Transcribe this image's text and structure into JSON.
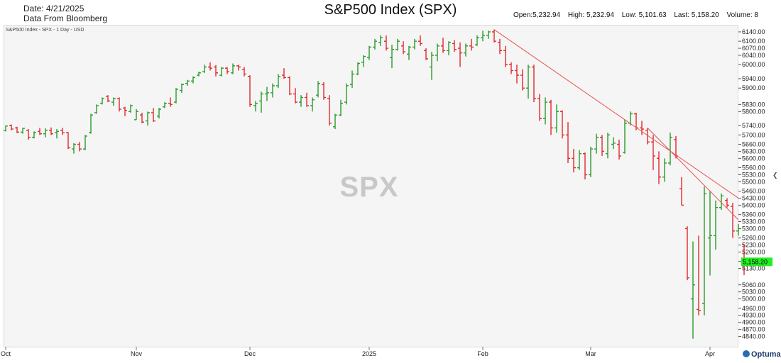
{
  "header": {
    "date": "Date: 4/21/2025",
    "source": "Data From Bloomberg",
    "title": "S&P500 Index (SPX)",
    "open": "Open:5,232.94",
    "high": "High: 5,232.94",
    "low": "Low: 5,101.63",
    "last": "Last: 5,158.20",
    "volume": "Volume: 8"
  },
  "legend": "S&P500 Index - SPX - 1 Day - USD",
  "watermark": "SPX",
  "logo": "Optuma",
  "colors": {
    "up": "#2a9b2a",
    "down": "#e0292b",
    "trend": "#e8524f",
    "last_badge": "#22ee22"
  },
  "chart_data": {
    "type": "bar",
    "ylim": [
      4805,
      6155
    ],
    "y_ticks": [
      6140,
      6100,
      6070,
      6040,
      6000,
      5940,
      5900,
      5830,
      5800,
      5740,
      5700,
      5660,
      5630,
      5600,
      5560,
      5530,
      5500,
      5460,
      5430,
      5400,
      5360,
      5330,
      5300,
      5260,
      5230,
      5200,
      5160,
      5130,
      5060,
      5030,
      5000,
      4960,
      4930,
      4900,
      4870,
      4840
    ],
    "y_tick_labels": [
      "6140.00",
      "6100.00",
      "6070.00",
      "6040.00",
      "6000.00",
      "5940.00",
      "5900.00",
      "5830.00",
      "5800.00",
      "5740.00",
      "5700.00",
      "5660.00",
      "5630.00",
      "5600.00",
      "5560.00",
      "5530.00",
      "5500.00",
      "5460.00",
      "5430.00",
      "5400.00",
      "5360.00",
      "5330.00",
      "5300.00",
      "5260.00",
      "5230.00",
      "5200.00",
      "5160.00",
      "5130.00",
      "5060.00",
      "5030.00",
      "5000.00",
      "4960.00",
      "4930.00",
      "4900.00",
      "4870.00",
      "4840.00"
    ],
    "x_labels": [
      {
        "label": "Oct",
        "bar": 0
      },
      {
        "label": "Nov",
        "bar": 23
      },
      {
        "label": "Dec",
        "bar": 43
      },
      {
        "label": "2025",
        "bar": 64
      },
      {
        "label": "Feb",
        "bar": 84
      },
      {
        "label": "Mar",
        "bar": 103
      },
      {
        "label": "Apr",
        "bar": 124
      }
    ],
    "last_value": "5,158.20",
    "ohlc": [
      [
        5718,
        5740,
        5715,
        5738
      ],
      [
        5740,
        5745,
        5720,
        5725
      ],
      [
        5730,
        5735,
        5708,
        5712
      ],
      [
        5712,
        5730,
        5705,
        5728
      ],
      [
        5720,
        5725,
        5680,
        5690
      ],
      [
        5690,
        5715,
        5685,
        5710
      ],
      [
        5715,
        5730,
        5700,
        5705
      ],
      [
        5705,
        5728,
        5690,
        5720
      ],
      [
        5720,
        5732,
        5700,
        5705
      ],
      [
        5710,
        5725,
        5685,
        5715
      ],
      [
        5720,
        5730,
        5700,
        5710
      ],
      [
        5710,
        5712,
        5640,
        5645
      ],
      [
        5640,
        5665,
        5620,
        5660
      ],
      [
        5660,
        5670,
        5630,
        5640
      ],
      [
        5640,
        5700,
        5635,
        5695
      ],
      [
        5710,
        5790,
        5705,
        5785
      ],
      [
        5795,
        5830,
        5790,
        5825
      ],
      [
        5835,
        5860,
        5830,
        5855
      ],
      [
        5865,
        5870,
        5840,
        5845
      ],
      [
        5840,
        5860,
        5825,
        5855
      ],
      [
        5855,
        5860,
        5800,
        5810
      ],
      [
        5815,
        5820,
        5780,
        5805
      ],
      [
        5800,
        5830,
        5795,
        5825
      ],
      [
        5765,
        5810,
        5765,
        5800
      ],
      [
        5785,
        5795,
        5750,
        5755
      ],
      [
        5760,
        5800,
        5740,
        5795
      ],
      [
        5795,
        5815,
        5755,
        5760
      ],
      [
        5780,
        5815,
        5770,
        5810
      ],
      [
        5820,
        5840,
        5815,
        5835
      ],
      [
        5835,
        5860,
        5820,
        5830
      ],
      [
        5840,
        5900,
        5835,
        5895
      ],
      [
        5890,
        5920,
        5880,
        5915
      ],
      [
        5920,
        5935,
        5910,
        5930
      ],
      [
        5930,
        5950,
        5920,
        5945
      ],
      [
        5955,
        5970,
        5950,
        5965
      ],
      [
        5970,
        6000,
        5965,
        5990
      ],
      [
        5990,
        6010,
        5975,
        5985
      ],
      [
        5990,
        5998,
        5950,
        5965
      ],
      [
        5955,
        5990,
        5950,
        5985
      ],
      [
        5985,
        5990,
        5960,
        5970
      ],
      [
        5965,
        6005,
        5960,
        5995
      ],
      [
        5995,
        6000,
        5975,
        5990
      ],
      [
        5980,
        5990,
        5950,
        5960
      ],
      [
        5950,
        5955,
        5820,
        5830
      ],
      [
        5825,
        5845,
        5800,
        5835
      ],
      [
        5845,
        5885,
        5795,
        5875
      ],
      [
        5875,
        5905,
        5845,
        5880
      ],
      [
        5880,
        5920,
        5860,
        5910
      ],
      [
        5910,
        5960,
        5900,
        5950
      ],
      [
        5955,
        5985,
        5940,
        5945
      ],
      [
        5945,
        5950,
        5870,
        5875
      ],
      [
        5875,
        5900,
        5835,
        5840
      ],
      [
        5840,
        5870,
        5820,
        5860
      ],
      [
        5860,
        5880,
        5820,
        5825
      ],
      [
        5825,
        5860,
        5800,
        5850
      ],
      [
        5870,
        5930,
        5860,
        5920
      ],
      [
        5915,
        5925,
        5850,
        5860
      ],
      [
        5855,
        5870,
        5740,
        5750
      ],
      [
        5735,
        5790,
        5725,
        5785
      ],
      [
        5785,
        5850,
        5780,
        5835
      ],
      [
        5840,
        5920,
        5830,
        5910
      ],
      [
        5915,
        5975,
        5900,
        5960
      ],
      [
        5960,
        6010,
        5955,
        6005
      ],
      [
        6010,
        6040,
        5990,
        6035
      ],
      [
        6030,
        6080,
        6020,
        6075
      ],
      [
        6075,
        6110,
        6065,
        6100
      ],
      [
        6095,
        6125,
        6080,
        6115
      ],
      [
        6100,
        6125,
        6060,
        6070
      ],
      [
        6030,
        6085,
        5985,
        6065
      ],
      [
        6065,
        6110,
        6060,
        6100
      ],
      [
        6080,
        6100,
        6045,
        6055
      ],
      [
        6045,
        6080,
        6020,
        6075
      ],
      [
        6075,
        6110,
        6065,
        6100
      ],
      [
        6100,
        6125,
        6080,
        6090
      ],
      [
        6060,
        6070,
        6020,
        6025
      ],
      [
        5990,
        6055,
        5935,
        6040
      ],
      [
        6040,
        6090,
        6015,
        6080
      ],
      [
        6080,
        6115,
        6050,
        6060
      ],
      [
        6060,
        6100,
        6040,
        6095
      ],
      [
        6090,
        6105,
        6055,
        6065
      ],
      [
        6070,
        6095,
        5990,
        6050
      ],
      [
        6050,
        6090,
        6035,
        6080
      ],
      [
        6080,
        6110,
        6060,
        6075
      ],
      [
        6085,
        6125,
        6080,
        6115
      ],
      [
        6115,
        6145,
        6100,
        6125
      ],
      [
        6125,
        6145,
        6110,
        6140
      ],
      [
        6140,
        6150,
        6095,
        6100
      ],
      [
        6095,
        6110,
        6045,
        6060
      ],
      [
        6060,
        6080,
        5990,
        6000
      ],
      [
        6000,
        6010,
        5960,
        5975
      ],
      [
        5975,
        6000,
        5920,
        5955
      ],
      [
        5955,
        5980,
        5890,
        5900
      ],
      [
        5900,
        6000,
        5855,
        5990
      ],
      [
        5990,
        6000,
        5840,
        5855
      ],
      [
        5855,
        5875,
        5760,
        5770
      ],
      [
        5770,
        5860,
        5745,
        5840
      ],
      [
        5840,
        5850,
        5700,
        5730
      ],
      [
        5730,
        5830,
        5710,
        5800
      ],
      [
        5800,
        5805,
        5685,
        5700
      ],
      [
        5700,
        5755,
        5580,
        5600
      ],
      [
        5600,
        5640,
        5540,
        5560
      ],
      [
        5560,
        5635,
        5550,
        5620
      ],
      [
        5620,
        5625,
        5510,
        5530
      ],
      [
        5530,
        5650,
        5520,
        5640
      ],
      [
        5640,
        5705,
        5620,
        5690
      ],
      [
        5690,
        5700,
        5610,
        5630
      ],
      [
        5620,
        5710,
        5600,
        5700
      ],
      [
        5660,
        5690,
        5640,
        5665
      ],
      [
        5660,
        5680,
        5595,
        5610
      ],
      [
        5625,
        5765,
        5620,
        5750
      ],
      [
        5750,
        5800,
        5740,
        5790
      ],
      [
        5790,
        5795,
        5720,
        5730
      ],
      [
        5730,
        5760,
        5700,
        5725
      ],
      [
        5720,
        5730,
        5660,
        5670
      ],
      [
        5670,
        5700,
        5550,
        5610
      ],
      [
        5600,
        5630,
        5490,
        5520
      ],
      [
        5520,
        5600,
        5500,
        5580
      ],
      [
        5580,
        5710,
        5570,
        5690
      ],
      [
        5680,
        5695,
        5600,
        5610
      ],
      [
        5470,
        5520,
        5400,
        5400
      ],
      [
        5300,
        5310,
        5080,
        5090
      ],
      [
        5000,
        5245,
        4830,
        5060
      ],
      [
        4955,
        5270,
        4930,
        4950
      ],
      [
        4980,
        5480,
        4930,
        5450
      ],
      [
        5260,
        5460,
        5100,
        5270
      ],
      [
        5270,
        5420,
        5210,
        5390
      ],
      [
        5390,
        5450,
        5380,
        5440
      ],
      [
        5420,
        5430,
        5390,
        5400
      ],
      [
        5395,
        5410,
        5260,
        5290
      ],
      [
        5290,
        5320,
        5270,
        5300
      ],
      [
        5232.94,
        5232.94,
        5101.63,
        5158.2
      ]
    ]
  }
}
